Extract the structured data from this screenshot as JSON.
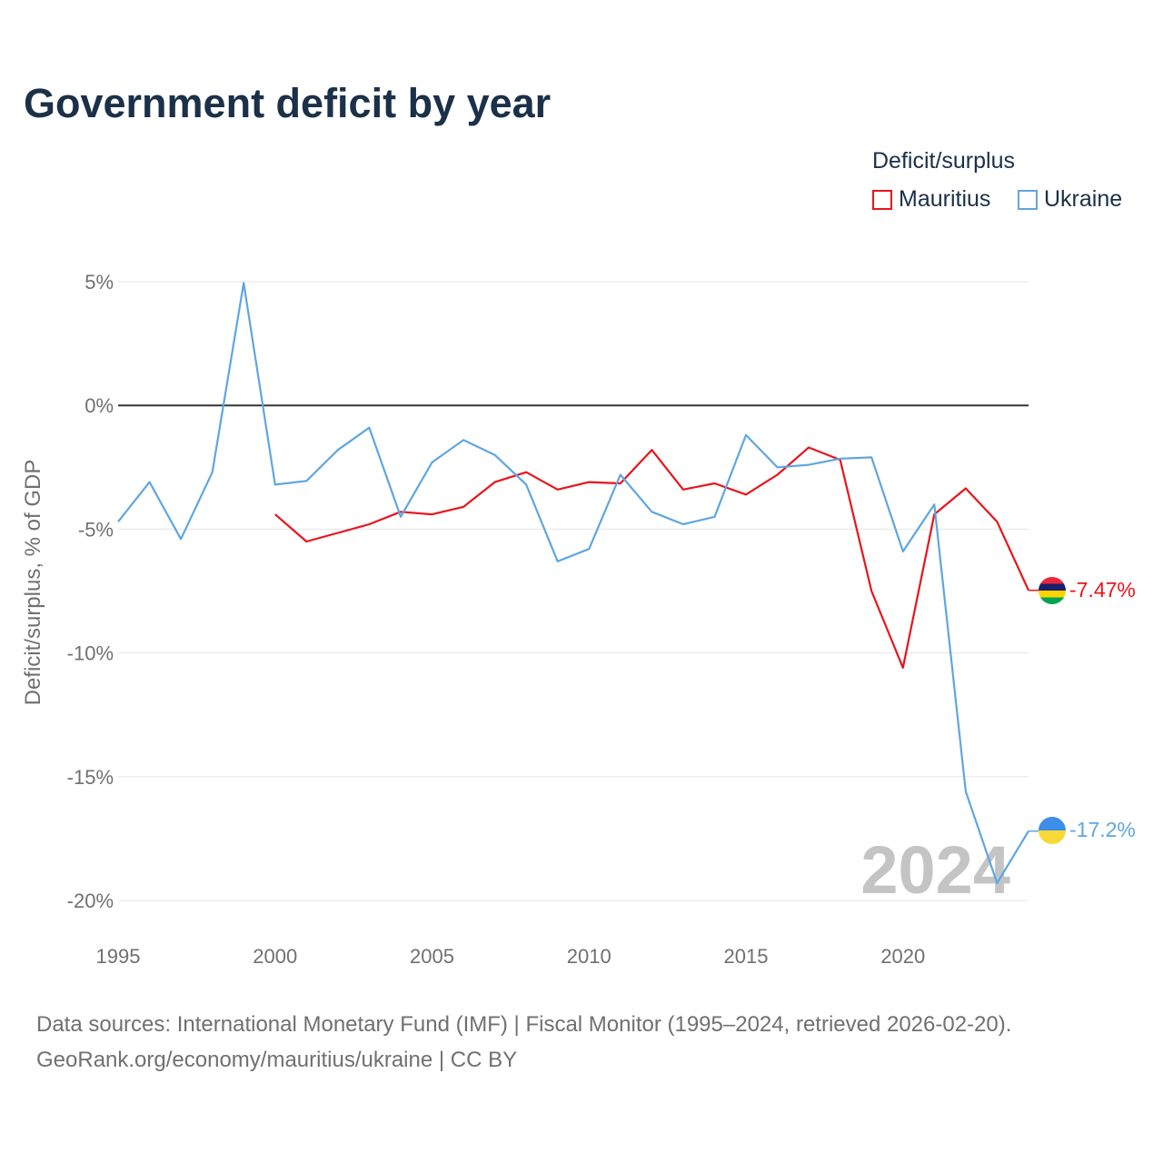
{
  "title": "Government deficit by year",
  "legend": {
    "title": "Deficit/surplus",
    "items": [
      {
        "label": "Mauritius",
        "color": "#e8141c"
      },
      {
        "label": "Ukraine",
        "color": "#5fa6e0"
      }
    ]
  },
  "chart_data": {
    "type": "line",
    "title": "Government deficit by year",
    "xlabel": "",
    "ylabel": "Deficit/surplus, % of GDP",
    "xlim": [
      1995,
      2024
    ],
    "ylim": [
      -20,
      5
    ],
    "x_ticks": [
      1995,
      2000,
      2005,
      2010,
      2015,
      2020
    ],
    "x_tick_labels": [
      "1995",
      "2000",
      "2005",
      "2010",
      "2015",
      "2020"
    ],
    "y_ticks": [
      5,
      0,
      -5,
      -10,
      -15,
      -20
    ],
    "y_tick_labels": [
      "5%",
      "0%",
      "-5%",
      "-10%",
      "-15%",
      "-20%"
    ],
    "zero_line": true,
    "grid": true,
    "year_watermark": "2024",
    "series": [
      {
        "name": "Mauritius",
        "color": "#e8141c",
        "end_label": "-7.47%",
        "flag": "mauritius-flag",
        "x": [
          2000,
          2001,
          2002,
          2003,
          2004,
          2005,
          2006,
          2007,
          2008,
          2009,
          2010,
          2011,
          2012,
          2013,
          2014,
          2015,
          2016,
          2017,
          2018,
          2019,
          2020,
          2021,
          2022,
          2023,
          2024
        ],
        "values": [
          -4.4,
          -5.5,
          -5.15,
          -4.8,
          -4.3,
          -4.4,
          -4.1,
          -3.1,
          -2.7,
          -3.4,
          -3.1,
          -3.15,
          -1.8,
          -3.4,
          -3.15,
          -3.6,
          -2.8,
          -1.7,
          -2.2,
          -7.5,
          -10.6,
          -4.4,
          -3.35,
          -4.7,
          -7.47
        ]
      },
      {
        "name": "Ukraine",
        "color": "#5fa6e0",
        "end_label": "-17.2%",
        "flag": "ukraine-flag",
        "x": [
          1995,
          1996,
          1997,
          1998,
          1999,
          2000,
          2001,
          2002,
          2003,
          2004,
          2005,
          2006,
          2007,
          2008,
          2009,
          2010,
          2011,
          2012,
          2013,
          2014,
          2015,
          2016,
          2017,
          2018,
          2019,
          2020,
          2021,
          2022,
          2023,
          2024
        ],
        "values": [
          -4.7,
          -3.1,
          -5.4,
          -2.7,
          4.95,
          -3.2,
          -3.05,
          -1.8,
          -0.9,
          -4.5,
          -2.3,
          -1.4,
          -2.0,
          -3.2,
          -6.3,
          -5.8,
          -2.8,
          -4.3,
          -4.8,
          -4.5,
          -1.2,
          -2.5,
          -2.4,
          -2.15,
          -2.1,
          -5.9,
          -4.0,
          -15.6,
          -19.3,
          -17.2
        ]
      }
    ]
  },
  "source": {
    "line1": "Data sources: International Monetary Fund (IMF) | Fiscal Monitor (1995–2024, retrieved 2026-02-20).",
    "line2": "GeoRank.org/economy/mauritius/ukraine | CC BY"
  }
}
